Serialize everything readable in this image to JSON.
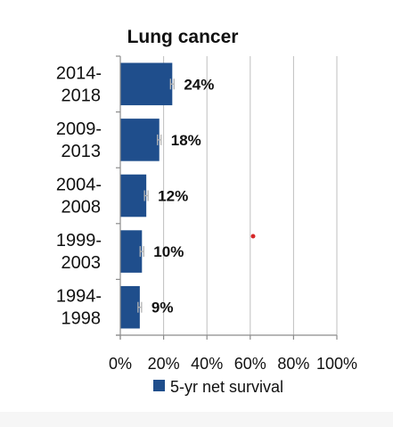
{
  "chart_data": {
    "type": "bar",
    "orientation": "horizontal",
    "title": "Lung cancer",
    "categories": [
      [
        "2014-",
        "2018"
      ],
      [
        "2009-",
        "2013"
      ],
      [
        "2004-",
        "2008"
      ],
      [
        "1999-",
        "2003"
      ],
      [
        "1994-",
        "1998"
      ]
    ],
    "series": [
      {
        "name": "5-yr net survival",
        "values": [
          24,
          18,
          12,
          10,
          9
        ],
        "labels": [
          "24%",
          "18%",
          "12%",
          "10%",
          "9%"
        ],
        "error_bars": true,
        "color": "#1f4e8c"
      }
    ],
    "xlim": [
      0,
      100
    ],
    "x_ticks": [
      0,
      20,
      40,
      60,
      80,
      100
    ],
    "x_tick_labels": [
      "0%",
      "20%",
      "40%",
      "60%",
      "80%",
      "100%"
    ],
    "xlabel": "",
    "ylabel": "",
    "grid": "vertical",
    "legend": "bottom"
  },
  "colors": {
    "bar": "#1f4e8c",
    "grid": "#bfbfbf",
    "axis": "#8c8c8c",
    "error_bar": "#b4b4b4",
    "marker": "#d62728"
  }
}
